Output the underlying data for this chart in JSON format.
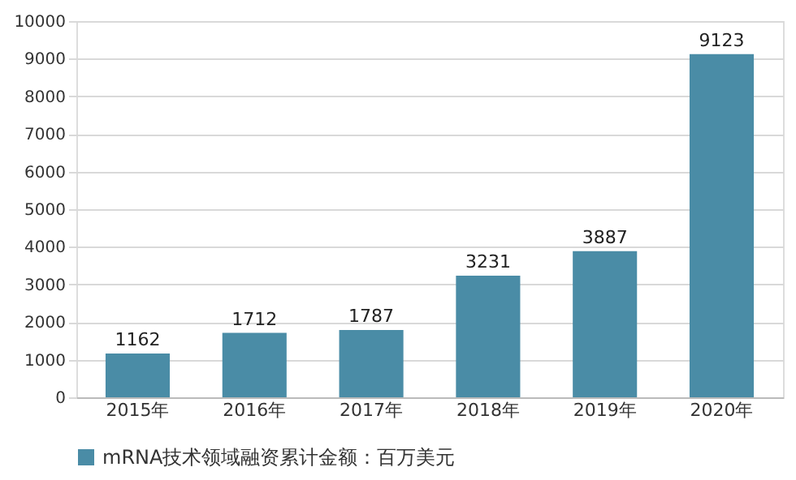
{
  "chart_data": {
    "type": "bar",
    "categories": [
      "2015年",
      "2016年",
      "2017年",
      "2018年",
      "2019年",
      "2020年"
    ],
    "series": [
      {
        "name": "mRNA技术领域融资累计金额：百万美元",
        "color": "#4a8ca6",
        "values": [
          1162,
          1712,
          1787,
          3231,
          3887,
          9123
        ]
      }
    ],
    "ylim": [
      0,
      10000
    ],
    "yticks": [
      0,
      1000,
      2000,
      3000,
      4000,
      5000,
      6000,
      7000,
      8000,
      9000,
      10000
    ],
    "grid": "y",
    "legend": "bottom",
    "data_labels": true
  }
}
